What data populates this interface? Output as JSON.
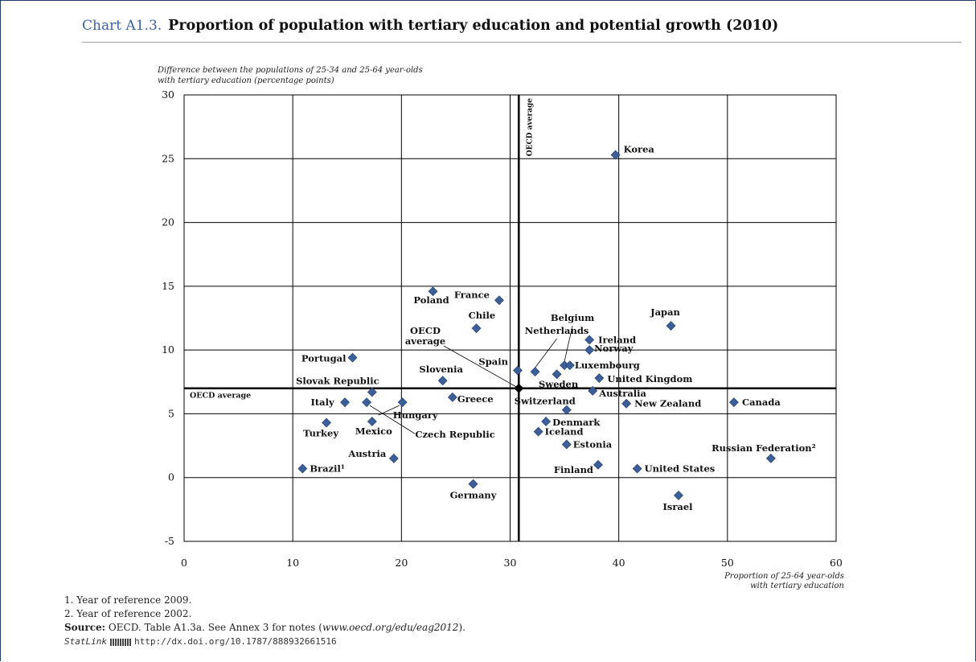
{
  "header": {
    "chart_label": "Chart A1.3.",
    "title": "Proportion of population with tertiary education and potential growth (2010)"
  },
  "footnotes": {
    "note1": "1. Year of reference 2009.",
    "note2": "2. Year of reference 2002.",
    "source_label": "Source:",
    "source_text_before": "OECD. Table A1.3a. See Annex 3 for notes (",
    "source_url": "www.oecd.org/edu/eag2012",
    "source_text_after": ").",
    "statlink_label": "StatLink",
    "statlink_url": "http://dx.doi.org/10.1787/888932661516"
  },
  "colors": {
    "marker": "#3c5f9a",
    "marker_stroke": "#1e3a66",
    "grid": "#000000",
    "title_accent": "#3b63a0"
  },
  "chart_data": {
    "type": "scatter",
    "title": "",
    "ylabel": "Difference between the populations of 25-34 and 25-64 year-olds\nwith tertiary education (percentage points)",
    "xlabel": "Proportion of 25-64 year-olds\nwith tertiary education",
    "xlim": [
      0,
      60
    ],
    "ylim": [
      -5,
      30
    ],
    "xticks": [
      0,
      10,
      20,
      30,
      40,
      50,
      60
    ],
    "yticks": [
      -5,
      0,
      5,
      10,
      15,
      20,
      25,
      30
    ],
    "grid": true,
    "reference_lines": {
      "oecd_x": 30.8,
      "oecd_y": 7.0,
      "vertical_label": "OECD average",
      "horizontal_label": "OECD average",
      "point_label": "OECD\naverage"
    },
    "points": [
      {
        "name": "Korea",
        "x": 39.7,
        "y": 25.3
      },
      {
        "name": "Poland",
        "x": 22.9,
        "y": 14.6
      },
      {
        "name": "France",
        "x": 29.0,
        "y": 13.9
      },
      {
        "name": "Netherlands",
        "x": 32.3,
        "y": 8.3
      },
      {
        "name": "Chile",
        "x": 26.9,
        "y": 11.7
      },
      {
        "name": "Belgium",
        "x": 35.0,
        "y": 8.8
      },
      {
        "name": "Japan",
        "x": 44.8,
        "y": 11.9
      },
      {
        "name": "Ireland",
        "x": 37.3,
        "y": 10.8
      },
      {
        "name": "Norway",
        "x": 37.3,
        "y": 10.0
      },
      {
        "name": "Portugal",
        "x": 15.5,
        "y": 9.4
      },
      {
        "name": "Spain",
        "x": 30.7,
        "y": 8.4
      },
      {
        "name": "Luxembourg",
        "x": 35.5,
        "y": 8.8
      },
      {
        "name": "Sweden",
        "x": 34.3,
        "y": 8.1
      },
      {
        "name": "United Kingdom",
        "x": 38.2,
        "y": 7.8
      },
      {
        "name": "Slovenia",
        "x": 23.8,
        "y": 7.6
      },
      {
        "name": "Slovak Republic",
        "x": 17.3,
        "y": 6.7
      },
      {
        "name": "Australia",
        "x": 37.6,
        "y": 6.8
      },
      {
        "name": "Italy",
        "x": 14.8,
        "y": 5.9
      },
      {
        "name": "Czech Republic",
        "x": 16.8,
        "y": 5.9
      },
      {
        "name": "Hungary",
        "x": 20.1,
        "y": 5.9
      },
      {
        "name": "Greece",
        "x": 24.7,
        "y": 6.3
      },
      {
        "name": "Switzerland",
        "x": 35.2,
        "y": 5.3
      },
      {
        "name": "New Zealand",
        "x": 40.7,
        "y": 5.8
      },
      {
        "name": "Canada",
        "x": 50.6,
        "y": 5.9
      },
      {
        "name": "Turkey",
        "x": 13.1,
        "y": 4.3
      },
      {
        "name": "Mexico",
        "x": 17.3,
        "y": 4.4
      },
      {
        "name": "Denmark",
        "x": 33.3,
        "y": 4.4
      },
      {
        "name": "Iceland",
        "x": 32.6,
        "y": 3.6
      },
      {
        "name": "Estonia",
        "x": 35.2,
        "y": 2.6
      },
      {
        "name": "Austria",
        "x": 19.3,
        "y": 1.5
      },
      {
        "name": "Brazil¹",
        "x": 10.9,
        "y": 0.7
      },
      {
        "name": "Russian Federation²",
        "x": 54.0,
        "y": 1.5
      },
      {
        "name": "Finland",
        "x": 38.1,
        "y": 1.0
      },
      {
        "name": "United States",
        "x": 41.7,
        "y": 0.7
      },
      {
        "name": "Germany",
        "x": 26.6,
        "y": -0.5
      },
      {
        "name": "Israel",
        "x": 45.5,
        "y": -1.4
      }
    ]
  }
}
